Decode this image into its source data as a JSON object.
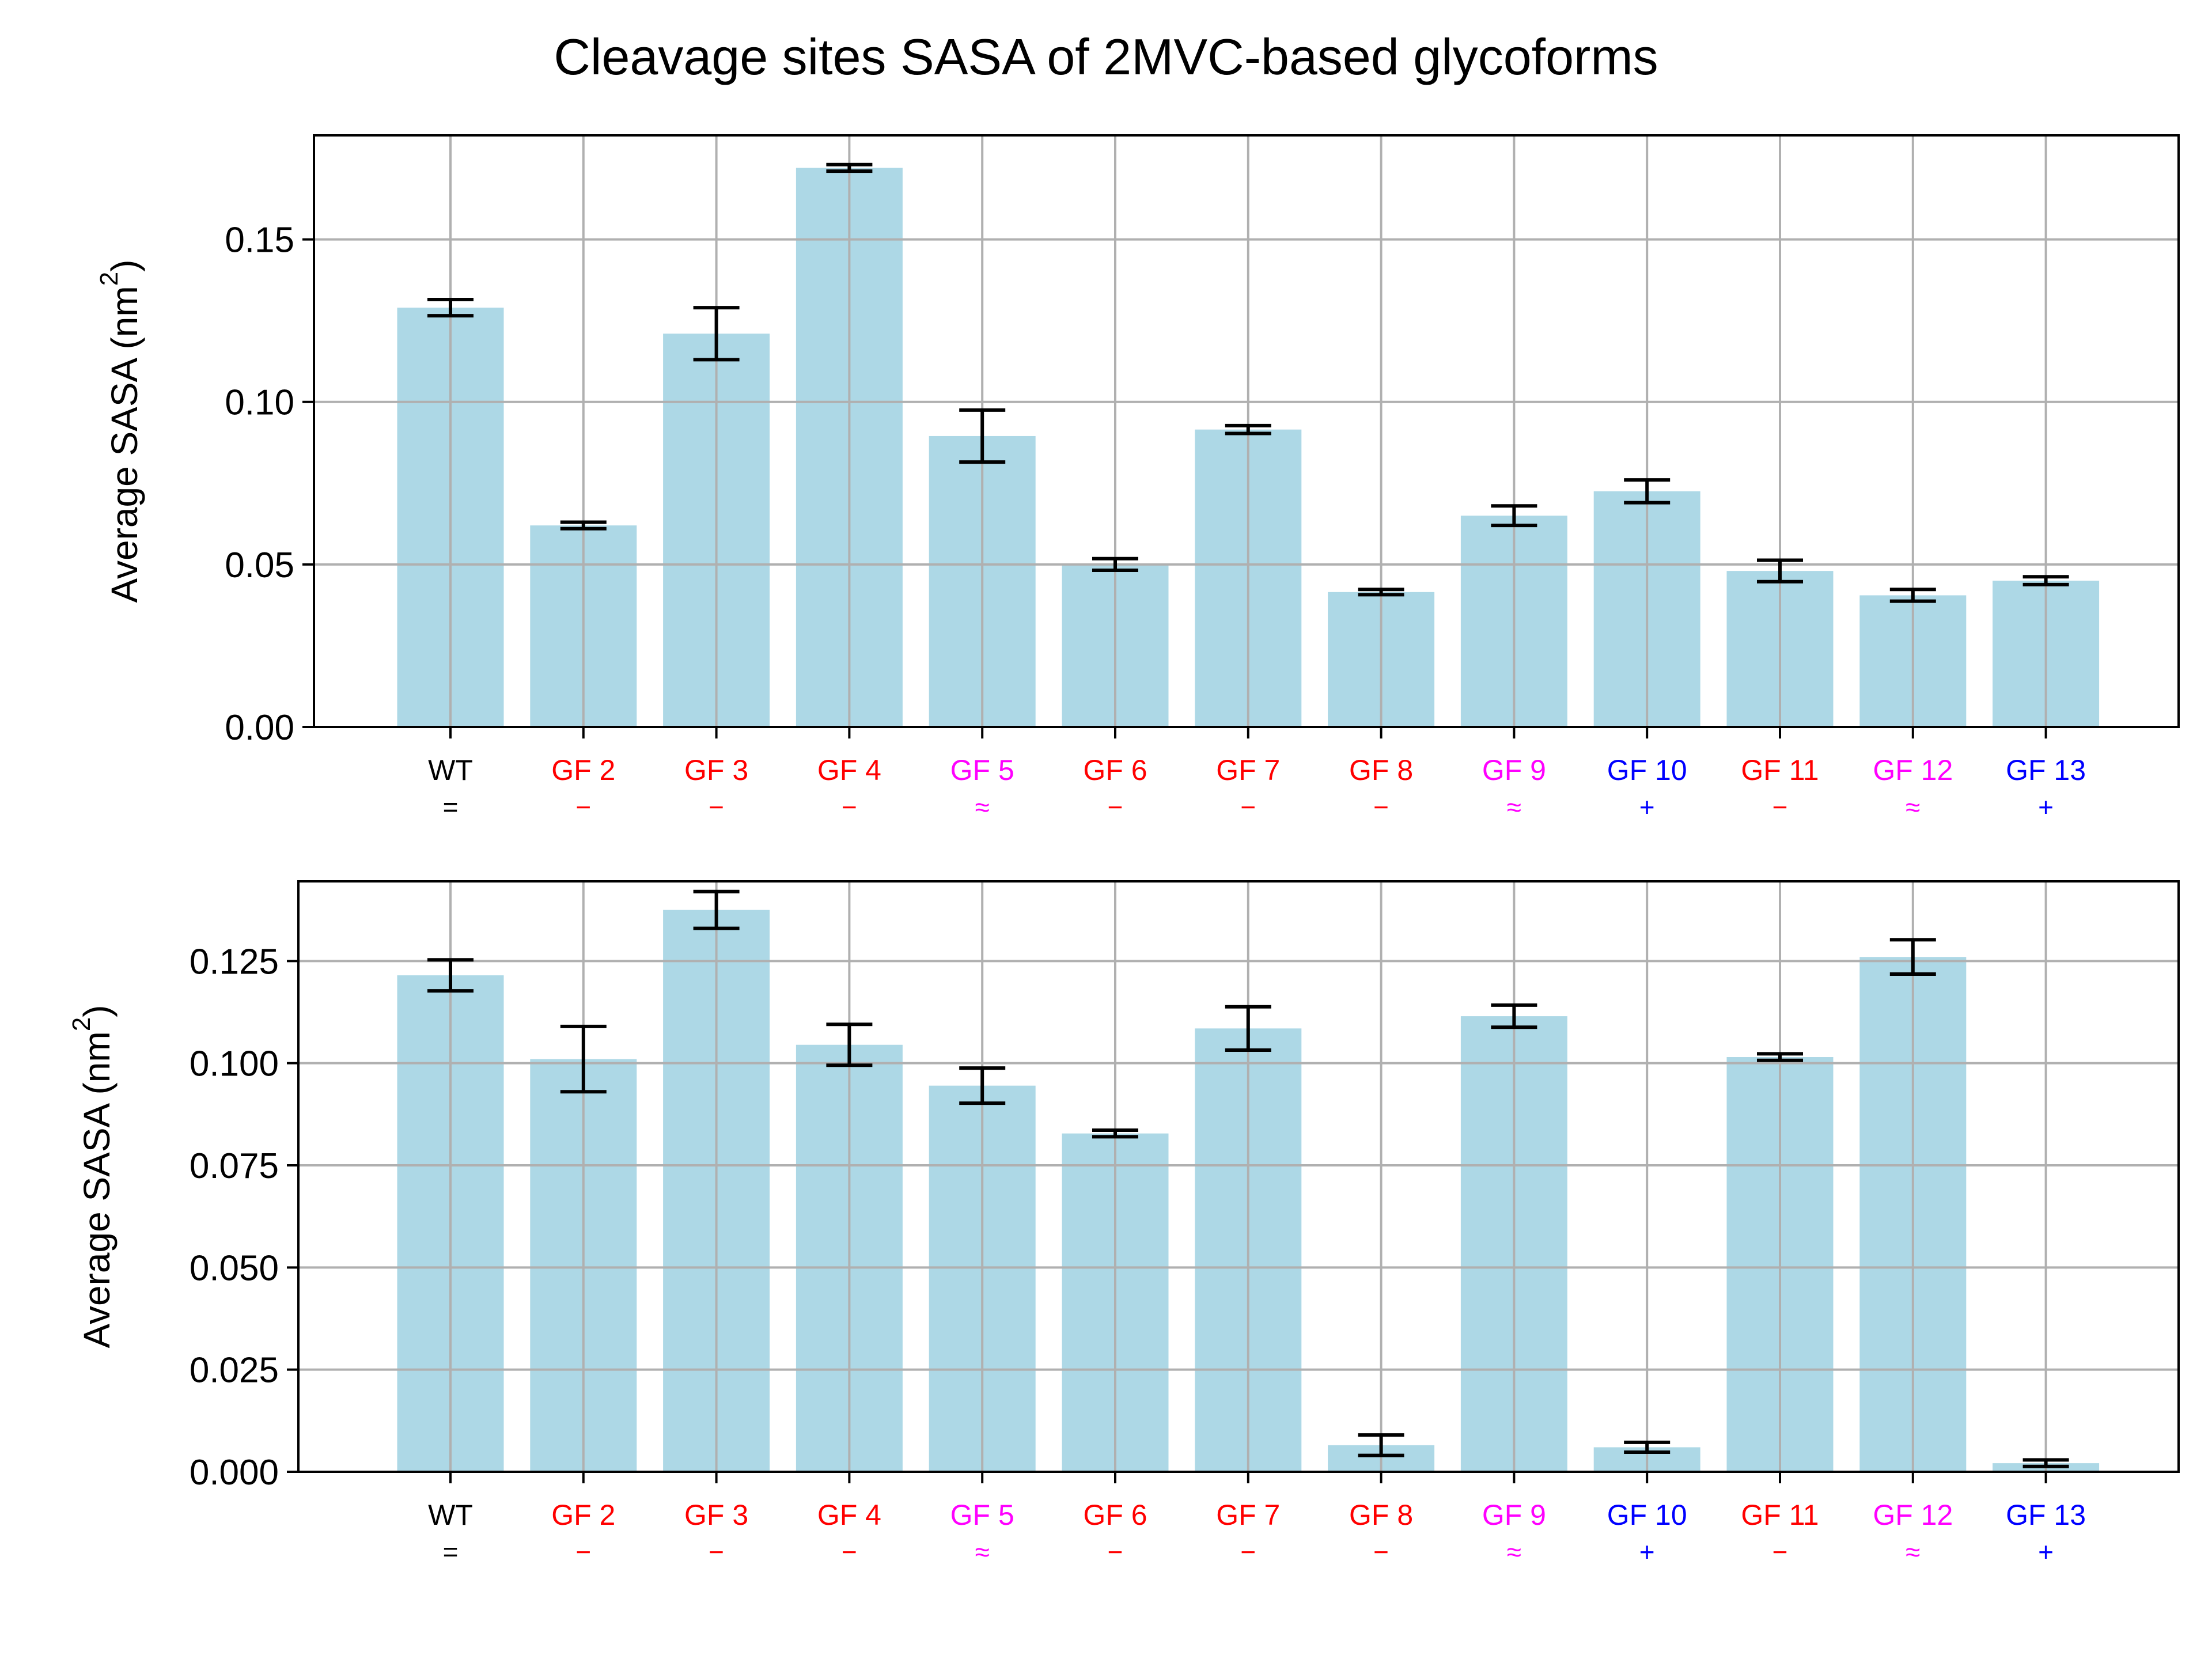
{
  "figure": {
    "title": "Cleavage sites SASA of 2MVC-based glycoforms"
  },
  "chart_data": [
    {
      "type": "bar",
      "title": "",
      "xlabel": "",
      "ylabel": "Average SASA (nm",
      "ylabel_sup": "2",
      "ylabel_end": ")",
      "categories": [
        "WT",
        "GF 2",
        "GF 3",
        "GF 4",
        "GF 5",
        "GF 6",
        "GF 7",
        "GF 8",
        "GF 9",
        "GF 10",
        "GF 11",
        "GF 12",
        "GF 13"
      ],
      "category_marks": [
        "=",
        "−",
        "−",
        "−",
        "≈",
        "−",
        "−",
        "−",
        "≈",
        "+",
        "−",
        "≈",
        "+"
      ],
      "category_colors": [
        "#000000",
        "#ff0000",
        "#ff0000",
        "#ff0000",
        "#ff00ff",
        "#ff0000",
        "#ff0000",
        "#ff0000",
        "#ff00ff",
        "#0000ff",
        "#ff0000",
        "#ff00ff",
        "#0000ff"
      ],
      "values": [
        0.129,
        0.062,
        0.121,
        0.172,
        0.0895,
        0.05,
        0.0915,
        0.0415,
        0.065,
        0.0725,
        0.048,
        0.0405,
        0.045
      ],
      "errors": [
        0.0025,
        0.001,
        0.008,
        0.001,
        0.008,
        0.0018,
        0.0012,
        0.0008,
        0.003,
        0.0035,
        0.0033,
        0.0018,
        0.0012
      ],
      "yticks": [
        "0.00",
        "0.05",
        "0.10",
        "0.15"
      ],
      "ylim": [
        0,
        0.182
      ],
      "grid": true,
      "bar_color": "#add8e6"
    },
    {
      "type": "bar",
      "title": "",
      "xlabel": "",
      "ylabel": "Average SASA (nm",
      "ylabel_sup": "2",
      "ylabel_end": ")",
      "categories": [
        "WT",
        "GF 2",
        "GF 3",
        "GF 4",
        "GF 5",
        "GF 6",
        "GF 7",
        "GF 8",
        "GF 9",
        "GF 10",
        "GF 11",
        "GF 12",
        "GF 13"
      ],
      "category_marks": [
        "=",
        "−",
        "−",
        "−",
        "≈",
        "−",
        "−",
        "−",
        "≈",
        "+",
        "−",
        "≈",
        "+"
      ],
      "category_colors": [
        "#000000",
        "#ff0000",
        "#ff0000",
        "#ff0000",
        "#ff00ff",
        "#ff0000",
        "#ff0000",
        "#ff0000",
        "#ff00ff",
        "#0000ff",
        "#ff0000",
        "#ff00ff",
        "#0000ff"
      ],
      "values": [
        0.1215,
        0.101,
        0.1375,
        0.1045,
        0.0945,
        0.0828,
        0.1085,
        0.0065,
        0.1115,
        0.006,
        0.1015,
        0.126,
        0.0021
      ],
      "errors": [
        0.0038,
        0.008,
        0.0045,
        0.005,
        0.0043,
        0.0008,
        0.0053,
        0.0025,
        0.0027,
        0.0012,
        0.0008,
        0.0042,
        0.0008
      ],
      "yticks": [
        "0.000",
        "0.025",
        "0.050",
        "0.075",
        "0.100",
        "0.125"
      ],
      "ylim": [
        0,
        0.1445
      ],
      "grid": true,
      "bar_color": "#add8e6"
    }
  ]
}
